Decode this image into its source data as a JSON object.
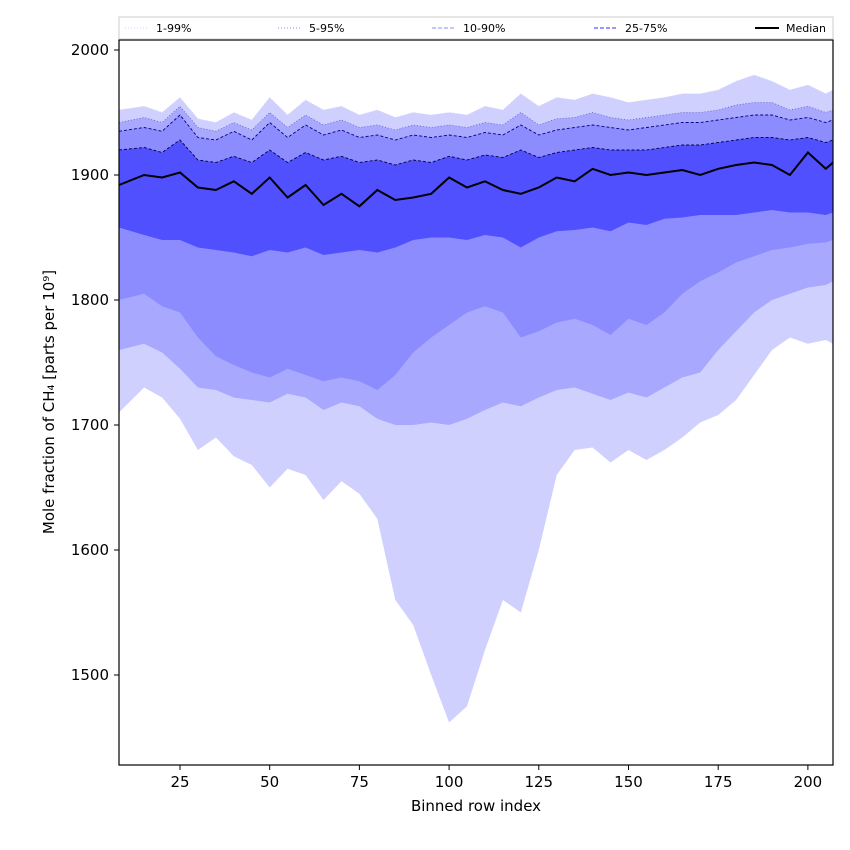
{
  "chart_data": {
    "type": "area",
    "title": "",
    "xlabel": "Binned row index",
    "ylabel": "Mole fraction of CH₄ [parts per 10⁹]",
    "xlim": [
      8,
      207
    ],
    "ylim": [
      1428,
      2008
    ],
    "xticks": [
      25,
      50,
      75,
      100,
      125,
      150,
      175,
      200
    ],
    "yticks": [
      1500,
      1600,
      1700,
      1800,
      1900,
      2000
    ],
    "grid": false,
    "legend_position": "top",
    "legend": [
      {
        "label": "1-99%",
        "style": "dotted",
        "color": "#d0d0ff"
      },
      {
        "label": "5-95%",
        "style": "dotted",
        "color": "#8c8cff"
      },
      {
        "label": "10-90%",
        "style": "dashed",
        "color": "#8c8cff"
      },
      {
        "label": "25-75%",
        "style": "dashed",
        "color": "#3030ff"
      },
      {
        "label": "Median",
        "style": "solid",
        "color": "#000000"
      }
    ],
    "x": [
      8,
      15,
      20,
      25,
      30,
      35,
      40,
      45,
      50,
      55,
      60,
      65,
      70,
      75,
      80,
      85,
      90,
      95,
      100,
      105,
      110,
      115,
      120,
      125,
      130,
      135,
      140,
      145,
      150,
      155,
      160,
      165,
      170,
      175,
      180,
      185,
      190,
      195,
      200,
      205,
      207
    ],
    "series": [
      {
        "name": "1-99%",
        "color": "#d0d0ff",
        "upper": [
          1952,
          1955,
          1950,
          1962,
          1945,
          1942,
          1950,
          1944,
          1962,
          1948,
          1960,
          1952,
          1955,
          1948,
          1952,
          1946,
          1950,
          1948,
          1950,
          1948,
          1955,
          1952,
          1965,
          1955,
          1962,
          1960,
          1965,
          1962,
          1958,
          1960,
          1962,
          1965,
          1965,
          1968,
          1975,
          1980,
          1975,
          1968,
          1972,
          1965,
          1968
        ],
        "lower": [
          1710,
          1730,
          1722,
          1705,
          1680,
          1690,
          1675,
          1668,
          1650,
          1665,
          1660,
          1640,
          1655,
          1645,
          1625,
          1560,
          1540,
          1500,
          1462,
          1475,
          1520,
          1560,
          1550,
          1600,
          1660,
          1680,
          1682,
          1670,
          1680,
          1672,
          1680,
          1690,
          1702,
          1708,
          1720,
          1740,
          1760,
          1770,
          1765,
          1768,
          1765
        ]
      },
      {
        "name": "5-95%",
        "color": "#a8a8ff",
        "upper": [
          1942,
          1946,
          1942,
          1955,
          1938,
          1935,
          1942,
          1936,
          1950,
          1938,
          1948,
          1940,
          1944,
          1938,
          1940,
          1936,
          1940,
          1938,
          1940,
          1938,
          1942,
          1940,
          1950,
          1940,
          1945,
          1946,
          1950,
          1946,
          1944,
          1946,
          1948,
          1950,
          1950,
          1952,
          1956,
          1958,
          1958,
          1952,
          1955,
          1950,
          1952
        ],
        "lower": [
          1760,
          1765,
          1758,
          1745,
          1730,
          1728,
          1722,
          1720,
          1718,
          1725,
          1722,
          1712,
          1718,
          1715,
          1705,
          1700,
          1700,
          1702,
          1700,
          1705,
          1712,
          1718,
          1715,
          1722,
          1728,
          1730,
          1725,
          1720,
          1726,
          1722,
          1730,
          1738,
          1742,
          1760,
          1775,
          1790,
          1800,
          1805,
          1810,
          1812,
          1815
        ]
      },
      {
        "name": "10-90%",
        "color": "#8c8cff",
        "upper": [
          1935,
          1938,
          1935,
          1948,
          1930,
          1928,
          1935,
          1928,
          1942,
          1930,
          1940,
          1932,
          1936,
          1930,
          1932,
          1928,
          1932,
          1930,
          1932,
          1930,
          1934,
          1932,
          1940,
          1932,
          1936,
          1938,
          1940,
          1938,
          1936,
          1938,
          1940,
          1942,
          1942,
          1944,
          1946,
          1948,
          1948,
          1944,
          1946,
          1942,
          1944
        ],
        "lower": [
          1800,
          1805,
          1795,
          1790,
          1770,
          1755,
          1748,
          1742,
          1738,
          1745,
          1740,
          1735,
          1738,
          1735,
          1728,
          1740,
          1758,
          1770,
          1780,
          1790,
          1795,
          1790,
          1770,
          1775,
          1782,
          1785,
          1780,
          1772,
          1785,
          1780,
          1790,
          1805,
          1815,
          1822,
          1830,
          1835,
          1840,
          1842,
          1845,
          1846,
          1848
        ]
      },
      {
        "name": "25-75%",
        "color": "#5050ff",
        "upper": [
          1920,
          1922,
          1918,
          1928,
          1912,
          1910,
          1915,
          1910,
          1920,
          1910,
          1918,
          1912,
          1915,
          1910,
          1912,
          1908,
          1912,
          1910,
          1915,
          1912,
          1916,
          1914,
          1920,
          1914,
          1918,
          1920,
          1922,
          1920,
          1920,
          1920,
          1922,
          1924,
          1924,
          1926,
          1928,
          1930,
          1930,
          1928,
          1930,
          1926,
          1928
        ],
        "lower": [
          1858,
          1852,
          1848,
          1848,
          1842,
          1840,
          1838,
          1835,
          1840,
          1838,
          1842,
          1836,
          1838,
          1840,
          1838,
          1842,
          1848,
          1850,
          1850,
          1848,
          1852,
          1850,
          1842,
          1850,
          1855,
          1856,
          1858,
          1855,
          1862,
          1860,
          1865,
          1866,
          1868,
          1868,
          1868,
          1870,
          1872,
          1870,
          1870,
          1868,
          1870
        ]
      }
    ],
    "median": {
      "name": "Median",
      "color": "#000000",
      "values": [
        1892,
        1900,
        1898,
        1902,
        1890,
        1888,
        1895,
        1885,
        1898,
        1882,
        1892,
        1876,
        1885,
        1875,
        1888,
        1880,
        1882,
        1885,
        1898,
        1890,
        1895,
        1888,
        1885,
        1890,
        1898,
        1895,
        1905,
        1900,
        1902,
        1900,
        1902,
        1904,
        1900,
        1905,
        1908,
        1910,
        1908,
        1900,
        1918,
        1905,
        1910
      ]
    }
  }
}
